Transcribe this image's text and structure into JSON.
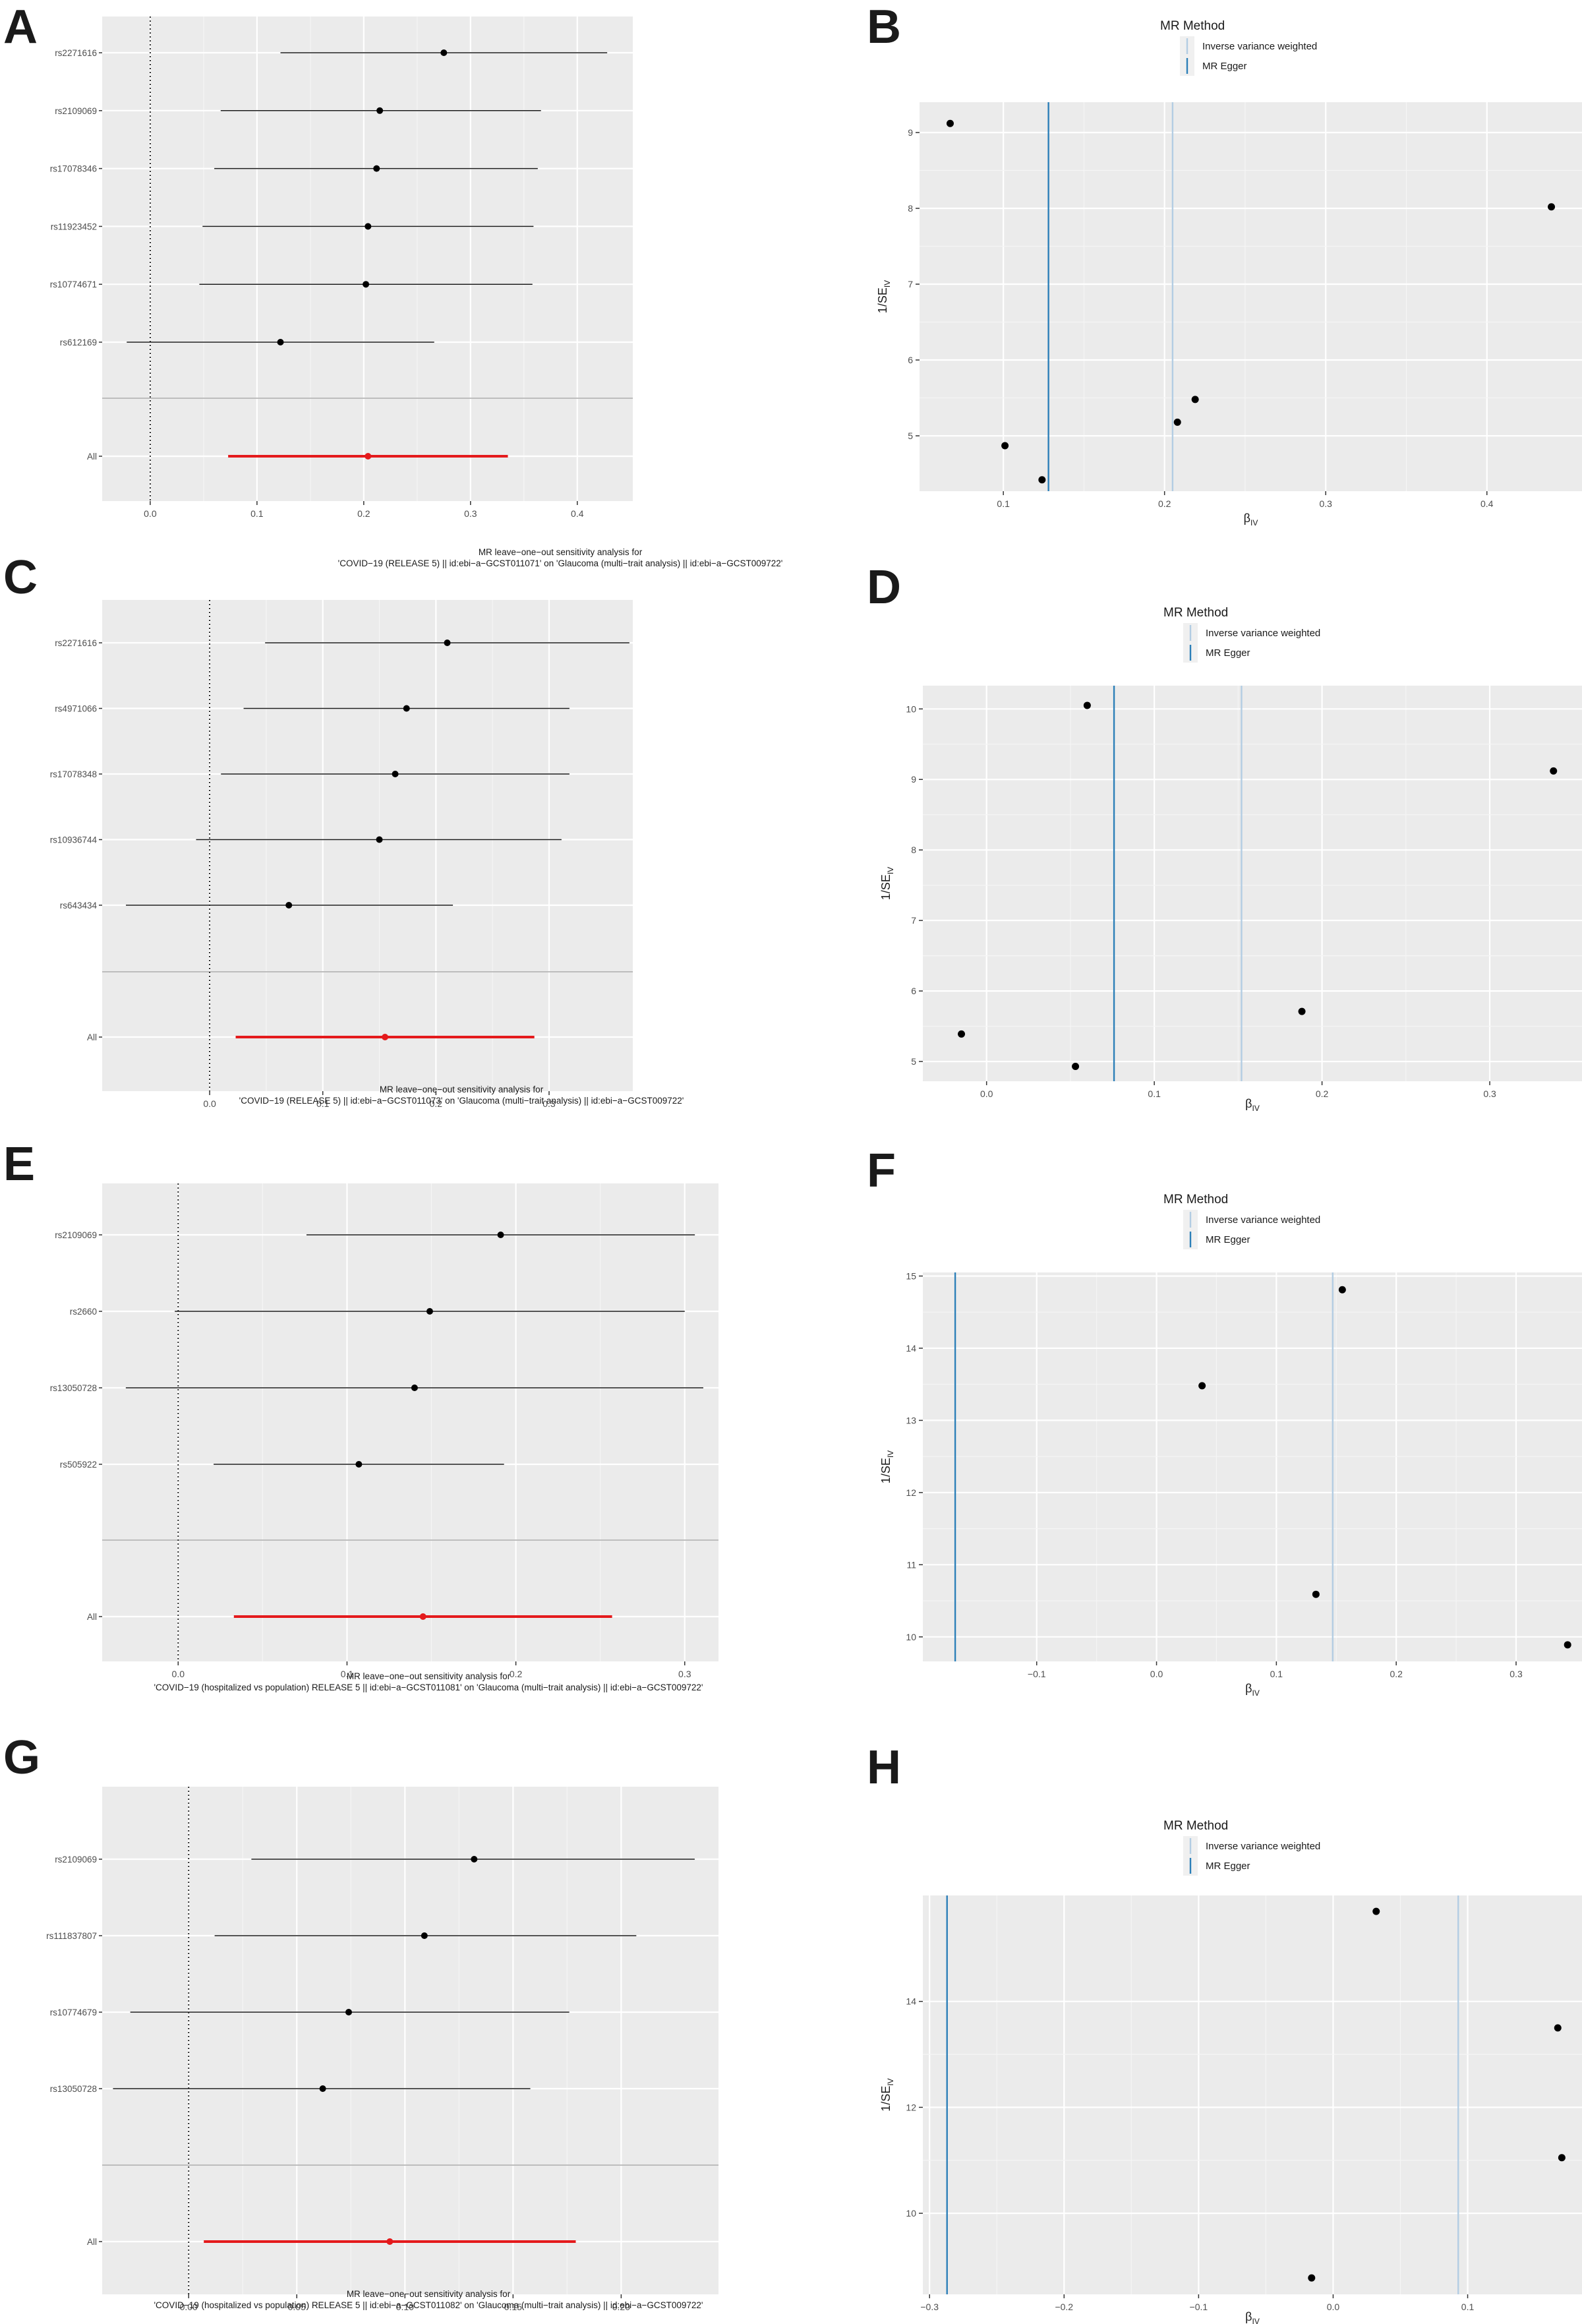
{
  "chart_data": [
    {
      "panel": "A",
      "type": "forest",
      "snps": [
        "rs2271616",
        "rs2109069",
        "rs17078346",
        "rs11923452",
        "rs10774671",
        "rs612169"
      ],
      "estimates": [
        {
          "b": 0.275,
          "lo": 0.122,
          "hi": 0.428
        },
        {
          "b": 0.215,
          "lo": 0.066,
          "hi": 0.366
        },
        {
          "b": 0.212,
          "lo": 0.06,
          "hi": 0.363
        },
        {
          "b": 0.204,
          "lo": 0.049,
          "hi": 0.359
        },
        {
          "b": 0.202,
          "lo": 0.046,
          "hi": 0.358
        },
        {
          "b": 0.122,
          "lo": -0.022,
          "hi": 0.266
        }
      ],
      "overall_label": "All",
      "overall": {
        "b": 0.204,
        "lo": 0.073,
        "hi": 0.335
      },
      "xlim": [
        -0.045,
        0.452
      ],
      "xticks": [
        0.0,
        0.1,
        0.2,
        0.3,
        0.4
      ],
      "xtick_labels": [
        "0.0",
        "0.1",
        "0.2",
        "0.3",
        "0.4"
      ],
      "caption": [
        "MR leave−one−out sensitivity analysis for",
        "'COVID−19 (RELEASE 5) || id:ebi−a−GCST011071' on 'Glaucoma (multi−trait analysis) || id:ebi−a−GCST009722'"
      ]
    },
    {
      "panel": "B",
      "type": "scatter",
      "legend_title": "MR Method",
      "legend": [
        {
          "name": "Inverse variance weighted",
          "color": "#b3cde3"
        },
        {
          "name": "MR Egger",
          "color": "#2c7fb8"
        }
      ],
      "vlines": [
        {
          "method": "MR Egger",
          "x": 0.128
        },
        {
          "method": "Inverse variance weighted",
          "x": 0.205
        }
      ],
      "points": [
        {
          "x": 0.067,
          "y": 9.12
        },
        {
          "x": 0.101,
          "y": 4.87
        },
        {
          "x": 0.124,
          "y": 4.42
        },
        {
          "x": 0.208,
          "y": 5.18
        },
        {
          "x": 0.219,
          "y": 5.48
        },
        {
          "x": 0.44,
          "y": 8.02
        }
      ],
      "xlim": [
        0.048,
        0.459
      ],
      "ylim": [
        4.27,
        9.4
      ],
      "xticks": [
        0.1,
        0.2,
        0.3,
        0.4
      ],
      "xtick_labels": [
        "0.1",
        "0.2",
        "0.3",
        "0.4"
      ],
      "yticks": [
        5,
        6,
        7,
        8,
        9
      ],
      "ytick_labels": [
        "5",
        "6",
        "7",
        "8",
        "9"
      ],
      "xlabel": "β",
      "xlabel_sub": "IV",
      "ylabel": "1/SE",
      "ylabel_sub": "IV"
    },
    {
      "panel": "C",
      "type": "forest",
      "snps": [
        "rs2271616",
        "rs4971066",
        "rs17078348",
        "rs10936744",
        "rs643434"
      ],
      "estimates": [
        {
          "b": 0.21,
          "lo": 0.049,
          "hi": 0.371
        },
        {
          "b": 0.174,
          "lo": 0.03,
          "hi": 0.318
        },
        {
          "b": 0.164,
          "lo": 0.01,
          "hi": 0.318
        },
        {
          "b": 0.15,
          "lo": -0.012,
          "hi": 0.311
        },
        {
          "b": 0.07,
          "lo": -0.074,
          "hi": 0.215
        }
      ],
      "overall_label": "All",
      "overall": {
        "b": 0.155,
        "lo": 0.023,
        "hi": 0.287
      },
      "xlim": [
        -0.095,
        0.374
      ],
      "xticks": [
        0.0,
        0.1,
        0.2,
        0.3
      ],
      "xtick_labels": [
        "0.0",
        "0.1",
        "0.2",
        "0.3"
      ],
      "caption": [
        "MR leave−one−out sensitivity analysis for",
        "'COVID−19 (RELEASE 5) || id:ebi−a−GCST011073' on 'Glaucoma (multi−trait analysis) || id:ebi−a−GCST009722'"
      ]
    },
    {
      "panel": "D",
      "type": "scatter",
      "legend_title": "MR Method",
      "legend": [
        {
          "name": "Inverse variance weighted",
          "color": "#b3cde3"
        },
        {
          "name": "MR Egger",
          "color": "#2c7fb8"
        }
      ],
      "vlines": [
        {
          "method": "MR Egger",
          "x": 0.076
        },
        {
          "method": "Inverse variance weighted",
          "x": 0.152
        }
      ],
      "points": [
        {
          "x": -0.015,
          "y": 5.39
        },
        {
          "x": 0.053,
          "y": 4.93
        },
        {
          "x": 0.06,
          "y": 10.05
        },
        {
          "x": 0.188,
          "y": 5.71
        },
        {
          "x": 0.338,
          "y": 9.12
        }
      ],
      "xlim": [
        -0.038,
        0.355
      ],
      "ylim": [
        4.72,
        10.33
      ],
      "xticks": [
        0.0,
        0.1,
        0.2,
        0.3
      ],
      "xtick_labels": [
        "0.0",
        "0.1",
        "0.2",
        "0.3"
      ],
      "yticks": [
        5,
        6,
        7,
        8,
        9,
        10
      ],
      "ytick_labels": [
        "5",
        "6",
        "7",
        "8",
        "9",
        "10"
      ],
      "xlabel": "β",
      "xlabel_sub": "IV",
      "ylabel": "1/SE",
      "ylabel_sub": "IV"
    },
    {
      "panel": "E",
      "type": "forest",
      "snps": [
        "rs2109069",
        "rs2660",
        "rs13050728",
        "rs505922"
      ],
      "estimates": [
        {
          "b": 0.191,
          "lo": 0.076,
          "hi": 0.306
        },
        {
          "b": 0.149,
          "lo": -0.002,
          "hi": 0.3
        },
        {
          "b": 0.14,
          "lo": -0.031,
          "hi": 0.311
        },
        {
          "b": 0.107,
          "lo": 0.021,
          "hi": 0.193
        }
      ],
      "overall_label": "All",
      "overall": {
        "b": 0.145,
        "lo": 0.033,
        "hi": 0.257
      },
      "xlim": [
        -0.045,
        0.32
      ],
      "xticks": [
        0.0,
        0.1,
        0.2,
        0.3
      ],
      "xtick_labels": [
        "0.0",
        "0.1",
        "0.2",
        "0.3"
      ],
      "caption": [
        "MR leave−one−out sensitivity analysis for",
        "'COVID−19 (hospitalized vs population) RELEASE 5 || id:ebi−a−GCST011081' on 'Glaucoma (multi−trait analysis) || id:ebi−a−GCST009722'"
      ]
    },
    {
      "panel": "F",
      "type": "scatter",
      "legend_title": "MR Method",
      "legend": [
        {
          "name": "Inverse variance weighted",
          "color": "#b3cde3"
        },
        {
          "name": "MR Egger",
          "color": "#2c7fb8"
        }
      ],
      "vlines": [
        {
          "method": "MR Egger",
          "x": -0.168
        },
        {
          "method": "Inverse variance weighted",
          "x": 0.147
        }
      ],
      "points": [
        {
          "x": 0.038,
          "y": 13.48
        },
        {
          "x": 0.133,
          "y": 10.59
        },
        {
          "x": 0.155,
          "y": 14.81
        },
        {
          "x": 0.343,
          "y": 9.89
        }
      ],
      "xlim": [
        -0.195,
        0.355
      ],
      "ylim": [
        9.66,
        15.05
      ],
      "xticks": [
        -0.1,
        0.0,
        0.1,
        0.2,
        0.3
      ],
      "xtick_labels": [
        "−0.1",
        "0.0",
        "0.1",
        "0.2",
        "0.3"
      ],
      "yticks": [
        10,
        11,
        12,
        13,
        14,
        15
      ],
      "ytick_labels": [
        "10",
        "11",
        "12",
        "13",
        "14",
        "15"
      ],
      "xlabel": "β",
      "xlabel_sub": "IV",
      "ylabel": "1/SE",
      "ylabel_sub": "IV"
    },
    {
      "panel": "G",
      "type": "forest",
      "snps": [
        "rs2109069",
        "rs111837807",
        "rs10774679",
        "rs13050728"
      ],
      "estimates": [
        {
          "b": 0.132,
          "lo": 0.029,
          "hi": 0.234
        },
        {
          "b": 0.109,
          "lo": 0.012,
          "hi": 0.207
        },
        {
          "b": 0.074,
          "lo": -0.027,
          "hi": 0.176
        },
        {
          "b": 0.062,
          "lo": -0.035,
          "hi": 0.158
        }
      ],
      "overall_label": "All",
      "overall": {
        "b": 0.093,
        "lo": 0.007,
        "hi": 0.179
      },
      "xlim": [
        -0.04,
        0.245
      ],
      "xticks": [
        0.0,
        0.05,
        0.1,
        0.15,
        0.2
      ],
      "xtick_labels": [
        "0.00",
        "0.05",
        "0.10",
        "0.15",
        "0.20"
      ],
      "caption": [
        "MR leave−one−out sensitivity analysis for",
        "'COVID−19 (hospitalized vs population) RELEASE 5 || id:ebi−a−GCST011082' on 'Glaucoma (multi−trait analysis) || id:ebi−a−GCST009722'"
      ]
    },
    {
      "panel": "H",
      "type": "scatter",
      "legend_title": "MR Method",
      "legend": [
        {
          "name": "Inverse variance weighted",
          "color": "#b3cde3"
        },
        {
          "name": "MR Egger",
          "color": "#2c7fb8"
        }
      ],
      "vlines": [
        {
          "method": "MR Egger",
          "x": -0.287
        },
        {
          "method": "Inverse variance weighted",
          "x": 0.093
        }
      ],
      "points": [
        {
          "x": -0.016,
          "y": 8.78
        },
        {
          "x": 0.032,
          "y": 15.7
        },
        {
          "x": 0.167,
          "y": 13.5
        },
        {
          "x": 0.17,
          "y": 11.05
        }
      ],
      "xlim": [
        -0.305,
        0.185
      ],
      "ylim": [
        8.47,
        16.0
      ],
      "xticks": [
        -0.3,
        -0.2,
        -0.1,
        0.0,
        0.1
      ],
      "xtick_labels": [
        "−0.3",
        "−0.2",
        "−0.1",
        "0.0",
        "0.1"
      ],
      "yticks": [
        10,
        12,
        14
      ],
      "ytick_labels": [
        "10",
        "12",
        "14"
      ],
      "xlabel": "β",
      "xlabel_sub": "IV",
      "ylabel": "1/SE",
      "ylabel_sub": "IV"
    }
  ]
}
